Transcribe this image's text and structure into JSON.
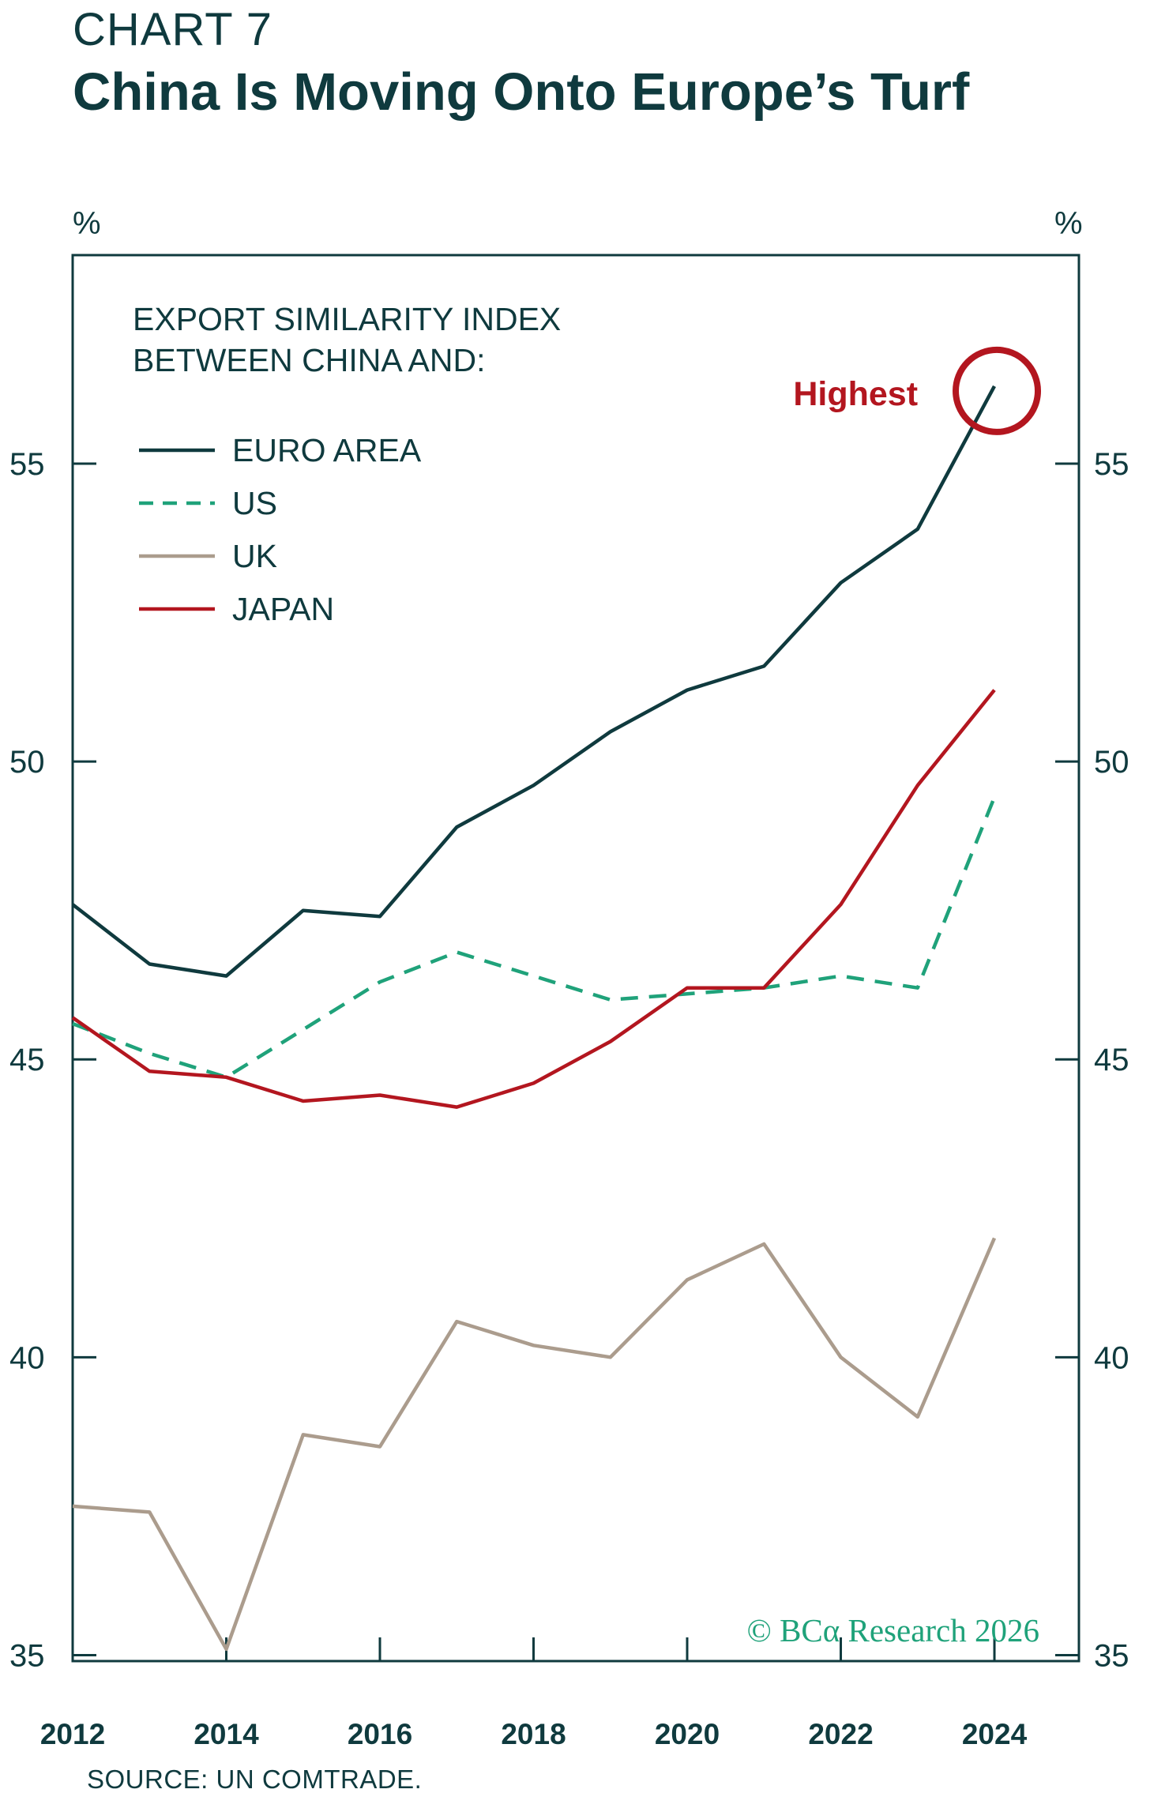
{
  "header": {
    "kicker": "CHART 7",
    "title": "China Is Moving Onto Europe’s Turf"
  },
  "source": "SOURCE: UN COMTRADE.",
  "chart_data": {
    "type": "line",
    "title": "China Is Moving Onto Europe’s Turf",
    "legend_title": "EXPORT SIMILARITY INDEX\nBETWEEN CHINA AND:",
    "legend_placement": "top-left",
    "left_unit": "%",
    "right_unit": "%",
    "x": [
      2012,
      2013,
      2014,
      2015,
      2016,
      2017,
      2018,
      2019,
      2020,
      2021,
      2022,
      2023,
      2024
    ],
    "x_ticks": [
      "2012",
      "2014",
      "2016",
      "2018",
      "2020",
      "2022",
      "2024"
    ],
    "xlim": [
      2012,
      2025.1
    ],
    "ylim": [
      34.9,
      58.5
    ],
    "y_ticks": [
      35,
      40,
      45,
      50,
      55
    ],
    "grid": false,
    "series": [
      {
        "name": "EURO AREA",
        "color": "#0f3a3e",
        "style": "solid",
        "values": [
          47.6,
          46.6,
          46.4,
          47.5,
          47.4,
          48.9,
          49.6,
          50.5,
          51.2,
          51.6,
          53.0,
          53.9,
          56.3
        ]
      },
      {
        "name": "US",
        "color": "#1fa27a",
        "style": "dashed",
        "values": [
          45.6,
          45.1,
          44.7,
          45.5,
          46.3,
          46.8,
          46.4,
          46.0,
          46.1,
          46.2,
          46.4,
          46.2,
          49.4
        ]
      },
      {
        "name": "UK",
        "color": "#ab9c8d",
        "style": "solid",
        "values": [
          37.5,
          37.4,
          35.1,
          38.7,
          38.5,
          40.6,
          40.2,
          40.0,
          41.3,
          41.9,
          40.0,
          39.0,
          42.0
        ]
      },
      {
        "name": "JAPAN",
        "color": "#b3161f",
        "style": "solid",
        "values": [
          45.7,
          44.8,
          44.7,
          44.3,
          44.4,
          44.2,
          44.6,
          45.3,
          46.2,
          46.2,
          47.6,
          49.6,
          51.2
        ]
      }
    ],
    "annotations": [
      {
        "text": "Highest",
        "series": "EURO AREA",
        "x": 2024,
        "color": "#b3161f"
      }
    ],
    "credit": "© BCα Research 2026"
  }
}
